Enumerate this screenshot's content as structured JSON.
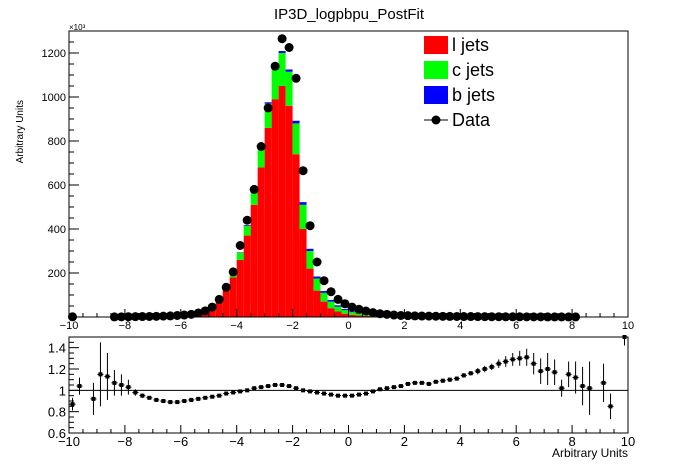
{
  "chart_data": [
    {
      "type": "bar",
      "subtype": "stacked-histogram",
      "title": "IP3D_logpbpu_PostFit",
      "ylabel": "Arbitrary Units",
      "y_multiplier_label": "×10³",
      "xlim": [
        -10,
        10
      ],
      "ylim": [
        0,
        1300000
      ],
      "bin_width": 0.25,
      "x_ticks": [
        "−10",
        "−8",
        "−6",
        "−4",
        "−2",
        "0",
        "2",
        "4",
        "6",
        "8",
        "10"
      ],
      "y_ticks": [
        "200",
        "400",
        "600",
        "800",
        "1000",
        "1200"
      ],
      "legend_position": "top-right",
      "legend": [
        {
          "label": "l jets",
          "color": "#ff0000",
          "kind": "box"
        },
        {
          "label": "c jets",
          "color": "#00ff00",
          "kind": "box"
        },
        {
          "label": "b jets",
          "color": "#0000ff",
          "kind": "box"
        },
        {
          "label": "Data",
          "color": "#000000",
          "kind": "marker"
        }
      ],
      "bin_centers": [
        -5.625,
        -5.375,
        -5.125,
        -4.875,
        -4.625,
        -4.375,
        -4.125,
        -3.875,
        -3.625,
        -3.375,
        -3.125,
        -2.875,
        -2.625,
        -2.375,
        -2.125,
        -1.875,
        -1.625,
        -1.375,
        -1.125,
        -0.875,
        -0.625,
        -0.375,
        -0.125,
        0.125,
        0.375,
        0.625,
        0.875,
        1.125,
        1.375,
        1.625,
        1.875
      ],
      "series": [
        {
          "name": "l jets",
          "color": "#ff0000",
          "values": [
            10000,
            20000,
            30000,
            50000,
            80000,
            120000,
            180000,
            260000,
            370000,
            510000,
            680000,
            860000,
            990000,
            1050000,
            960000,
            740000,
            400000,
            220000,
            120000,
            70000,
            40000,
            25000,
            15000,
            10000,
            7000,
            5000,
            3000,
            2000,
            1500,
            1000,
            800
          ]
        },
        {
          "name": "c jets",
          "color": "#00ff00",
          "values": [
            1000,
            2000,
            4000,
            6000,
            10000,
            15000,
            22000,
            32000,
            45000,
            60000,
            85000,
            110000,
            135000,
            150000,
            155000,
            140000,
            110000,
            80000,
            55000,
            40000,
            30000,
            22000,
            16000,
            12000,
            9000,
            7000,
            5000,
            4000,
            3000,
            2500,
            2000
          ]
        },
        {
          "name": "b jets",
          "color": "#0000ff",
          "values": [
            0,
            0,
            0,
            0,
            1000,
            1000,
            2000,
            2000,
            3000,
            4000,
            5000,
            6000,
            8000,
            9000,
            10000,
            12000,
            12000,
            10000,
            9000,
            8000,
            7000,
            6000,
            5000,
            4000,
            3500,
            3000,
            2500,
            2000,
            1500,
            1000,
            800
          ]
        }
      ],
      "data_points": {
        "name": "Data",
        "x": [
          -9.875,
          -8.375,
          -8.125,
          -7.875,
          -7.625,
          -7.375,
          -7.125,
          -6.875,
          -6.625,
          -6.375,
          -6.125,
          -5.875,
          -5.625,
          -5.375,
          -5.125,
          -4.875,
          -4.625,
          -4.375,
          -4.125,
          -3.875,
          -3.625,
          -3.375,
          -3.125,
          -2.875,
          -2.625,
          -2.375,
          -2.125,
          -1.875,
          -1.625,
          -1.375,
          -1.125,
          -0.875,
          -0.625,
          -0.375,
          -0.125,
          0.125,
          0.375,
          0.625,
          0.875,
          1.125,
          1.375,
          1.625,
          1.875,
          2.125,
          2.375,
          2.625,
          2.875,
          3.125,
          3.375,
          3.625,
          3.875,
          4.125,
          4.375,
          4.625,
          4.875,
          5.125,
          5.375,
          5.625,
          5.875,
          6.125,
          6.375,
          6.625,
          6.875,
          7.125,
          7.375,
          7.625,
          7.875,
          8.125
        ],
        "y": [
          1000,
          500,
          800,
          1000,
          1500,
          2000,
          2500,
          3000,
          4000,
          5000,
          7000,
          9000,
          12000,
          18000,
          28000,
          45000,
          80000,
          135000,
          205000,
          325000,
          440000,
          580000,
          775000,
          950000,
          1140000,
          1265000,
          1225000,
          1085000,
          665000,
          415000,
          250000,
          165000,
          115000,
          80000,
          60000,
          45000,
          35000,
          27000,
          20000,
          15000,
          12000,
          9000,
          7000,
          6000,
          5000,
          4500,
          4000,
          3500,
          3000,
          2700,
          2400,
          2200,
          2000,
          1800,
          1600,
          1400,
          1200,
          1100,
          1000,
          900,
          800,
          700,
          600,
          500,
          450,
          400,
          350,
          300
        ]
      }
    },
    {
      "type": "scatter",
      "subtype": "ratio-panel",
      "xlabel": "Arbitrary Units",
      "xlim": [
        -10,
        10
      ],
      "ylim": [
        0.6,
        1.5
      ],
      "reference_line": 1,
      "x_ticks": [
        "−10",
        "−8",
        "−6",
        "−4",
        "−2",
        "0",
        "2",
        "4",
        "6",
        "8",
        "10"
      ],
      "y_ticks": [
        "0.6",
        "0.8",
        "1",
        "1.2",
        "1.4"
      ],
      "x": [
        -9.875,
        -9.625,
        -9.375,
        -9.125,
        -8.875,
        -8.625,
        -8.375,
        -8.125,
        -7.875,
        -7.625,
        -7.375,
        -7.125,
        -6.875,
        -6.625,
        -6.375,
        -6.125,
        -5.875,
        -5.625,
        -5.375,
        -5.125,
        -4.875,
        -4.625,
        -4.375,
        -4.125,
        -3.875,
        -3.625,
        -3.375,
        -3.125,
        -2.875,
        -2.625,
        -2.375,
        -2.125,
        -1.875,
        -1.625,
        -1.375,
        -1.125,
        -0.875,
        -0.625,
        -0.375,
        -0.125,
        0.125,
        0.375,
        0.625,
        0.875,
        1.125,
        1.375,
        1.625,
        1.875,
        2.125,
        2.375,
        2.625,
        2.875,
        3.125,
        3.375,
        3.625,
        3.875,
        4.125,
        4.375,
        4.625,
        4.875,
        5.125,
        5.375,
        5.625,
        5.875,
        6.125,
        6.375,
        6.625,
        6.875,
        7.125,
        7.375,
        7.625,
        7.875,
        8.125,
        8.375,
        8.625,
        8.875,
        9.125,
        9.375,
        9.625,
        9.875
      ],
      "y": [
        0.87,
        1.04,
        null,
        0.92,
        1.15,
        1.13,
        1.07,
        1.05,
        1.03,
        0.98,
        0.95,
        0.93,
        0.91,
        0.9,
        0.89,
        0.89,
        0.9,
        0.91,
        0.92,
        0.93,
        0.94,
        0.95,
        0.97,
        0.98,
        0.99,
        1.0,
        1.02,
        1.03,
        1.04,
        1.05,
        1.05,
        1.04,
        1.02,
        1.0,
        0.99,
        0.98,
        0.97,
        0.96,
        0.95,
        0.95,
        0.95,
        0.96,
        0.97,
        0.99,
        1.01,
        1.02,
        1.03,
        1.04,
        1.06,
        1.07,
        1.07,
        1.06,
        1.08,
        1.09,
        1.1,
        1.11,
        1.14,
        1.16,
        1.18,
        1.2,
        1.22,
        1.25,
        1.27,
        1.29,
        1.3,
        1.31,
        1.25,
        1.18,
        1.2,
        1.17,
        1.02,
        1.15,
        1.12,
        1.04,
        1.02,
        null,
        1.07,
        0.85,
        null,
        1.5
      ],
      "yerr": [
        0.06,
        0.08,
        0,
        0.15,
        0.3,
        0.22,
        0.12,
        0.1,
        0.07,
        0.03,
        0.02,
        0.01,
        0.01,
        0.01,
        0.01,
        0.01,
        0.01,
        0.01,
        0.01,
        0.01,
        0.01,
        0.01,
        0.01,
        0.01,
        0.01,
        0.01,
        0.01,
        0.01,
        0.01,
        0.01,
        0.01,
        0.01,
        0.01,
        0.01,
        0.01,
        0.01,
        0.01,
        0.01,
        0.01,
        0.01,
        0.01,
        0.01,
        0.01,
        0.01,
        0.01,
        0.01,
        0.01,
        0.01,
        0.01,
        0.01,
        0.01,
        0.01,
        0.01,
        0.02,
        0.02,
        0.02,
        0.02,
        0.02,
        0.03,
        0.03,
        0.03,
        0.04,
        0.05,
        0.06,
        0.07,
        0.08,
        0.1,
        0.12,
        0.15,
        0.12,
        0.08,
        0.12,
        0.15,
        0.18,
        0.25,
        0,
        0.18,
        0.12,
        0,
        0.08
      ]
    }
  ]
}
